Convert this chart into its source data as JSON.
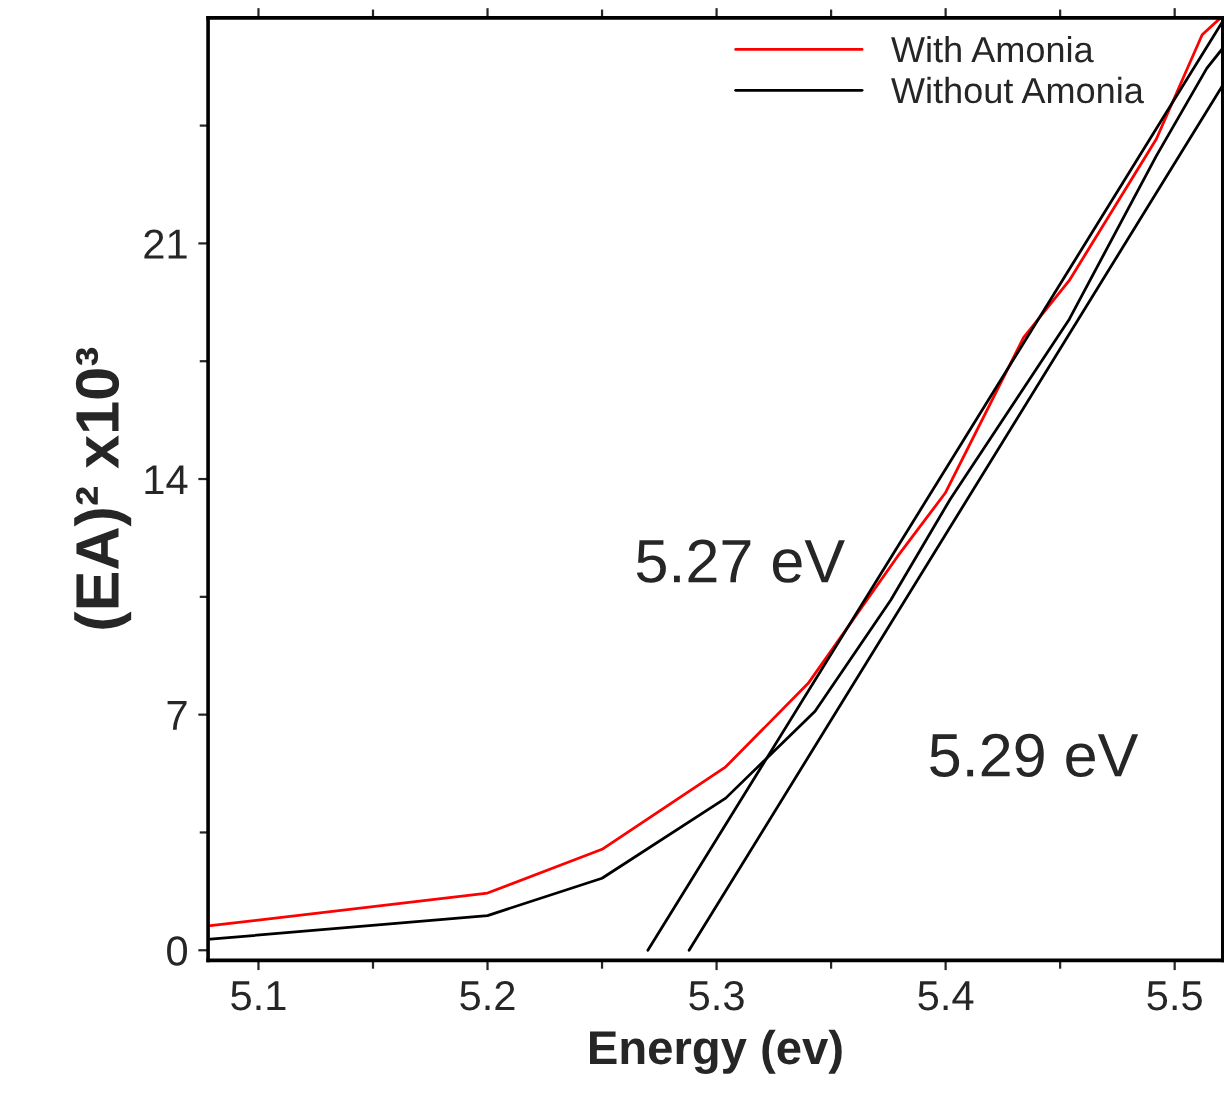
{
  "chart_data": {
    "type": "line",
    "xlabel": "Energy (ev)",
    "ylabel": "(EA)² x10³",
    "xlim": [
      5.078,
      5.521
    ],
    "ylim": [
      -0.3,
      27.7
    ],
    "xticks": [
      5.1,
      {
        "value": 5.15,
        "label": null
      },
      5.2,
      {
        "value": 5.25,
        "label": null
      },
      5.3,
      {
        "value": 5.35,
        "label": null
      },
      5.4,
      {
        "value": 5.45,
        "label": null
      },
      5.5
    ],
    "yticks": [
      0,
      {
        "value": 3.5,
        "label": null
      },
      7,
      {
        "value": 10.5,
        "label": null
      },
      14,
      {
        "value": 17.5,
        "label": null
      },
      21,
      {
        "value": 24.5,
        "label": null
      }
    ],
    "legend": "top right",
    "grid": false,
    "series": [
      {
        "name": "With Amonia",
        "color": "#ff0000",
        "x": [
          5.079,
          5.2,
          5.25,
          5.304,
          5.34,
          5.379,
          5.4,
          5.434,
          5.454,
          5.492,
          5.512,
          5.52
        ],
        "values": [
          0.73,
          1.7,
          3.0,
          5.45,
          7.93,
          11.7,
          13.6,
          18.2,
          19.9,
          24.1,
          27.2,
          27.7
        ]
      },
      {
        "name": "Without Amonia",
        "color": "#000000",
        "x": [
          5.079,
          5.2,
          5.25,
          5.304,
          5.343,
          5.376,
          5.402,
          5.454,
          5.492,
          5.514,
          5.521
        ],
        "values": [
          0.33,
          1.03,
          2.14,
          4.52,
          7.1,
          10.4,
          13.4,
          18.75,
          23.6,
          26.2,
          26.8
        ]
      },
      {
        "color": "#000000",
        "x": [
          5.27,
          5.521
        ],
        "values": [
          0,
          27.6
        ]
      },
      {
        "color": "#000000",
        "x": [
          5.288,
          5.521
        ],
        "values": [
          0,
          25.7
        ]
      }
    ],
    "annotations": [
      "5.27 eV",
      "5.29 eV"
    ]
  }
}
